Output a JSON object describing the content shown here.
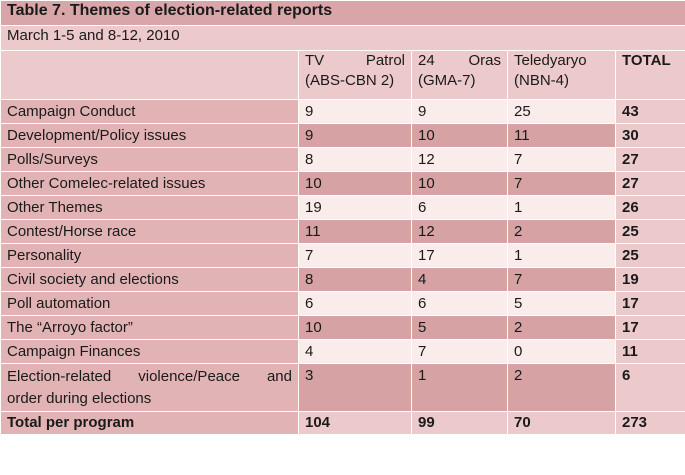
{
  "title": "Table 7. Themes of election-related reports",
  "subtitle": "March 1-5 and 8-12, 2010",
  "headers": {
    "col1": [
      "TV",
      "Patrol",
      "(ABS-CBN 2)"
    ],
    "col2": [
      "24",
      "Oras",
      "(GMA-7)"
    ],
    "col3": [
      "Teledyaryo",
      "(NBN-4)"
    ],
    "total": "TOTAL"
  },
  "rows": [
    {
      "label": "Campaign Conduct",
      "v": [
        "9",
        "9",
        "25"
      ],
      "total": "43"
    },
    {
      "label": "Development/Policy issues",
      "v": [
        "9",
        "10",
        "11"
      ],
      "total": "30"
    },
    {
      "label": "Polls/Surveys",
      "v": [
        "8",
        "12",
        "7"
      ],
      "total": "27"
    },
    {
      "label": "Other Comelec-related  issues",
      "v": [
        "10",
        "10",
        "7"
      ],
      "total": "27"
    },
    {
      "label": "Other Themes",
      "v": [
        "19",
        "6",
        "1"
      ],
      "total": "26"
    },
    {
      "label": "Contest/Horse race",
      "v": [
        "11",
        "12",
        "2"
      ],
      "total": "25"
    },
    {
      "label": "Personality",
      "v": [
        "7",
        "17",
        "1"
      ],
      "total": "25"
    },
    {
      "label": "Civil society and elections",
      "v": [
        "8",
        "4",
        "7"
      ],
      "total": "19"
    },
    {
      "label": "Poll automation",
      "v": [
        "6",
        "6",
        "5"
      ],
      "total": "17"
    },
    {
      "label": "The “Arroyo factor”",
      "v": [
        "10",
        "5",
        "2"
      ],
      "total": "17"
    },
    {
      "label": "Campaign Finances",
      "v": [
        "4",
        "7",
        "0"
      ],
      "total": "11"
    }
  ],
  "tall_row": {
    "label_line1": [
      "Election-related",
      "violence/Peace",
      "and"
    ],
    "label_line2": "order during elections",
    "v": [
      "3",
      "1",
      "2"
    ],
    "total": "6"
  },
  "footer": {
    "label": "Total per program",
    "v": [
      "104",
      "99",
      "70"
    ],
    "total": "273"
  }
}
